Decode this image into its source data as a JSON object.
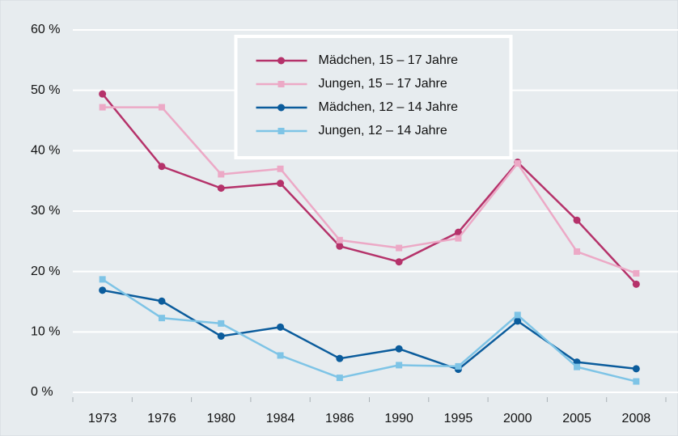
{
  "chart_data": {
    "type": "line",
    "categories": [
      "1973",
      "1976",
      "1980",
      "1984",
      "1986",
      "1990",
      "1995",
      "2000",
      "2005",
      "2008"
    ],
    "series": [
      {
        "name": "Mädchen, 15 – 17 Jahre",
        "color": "#b5326a",
        "marker": "circle",
        "values": [
          49.4,
          37.4,
          33.8,
          34.6,
          24.2,
          21.6,
          26.5,
          38.1,
          28.5,
          17.9
        ]
      },
      {
        "name": "Jungen, 15 – 17 Jahre",
        "color": "#eca9c6",
        "marker": "square",
        "values": [
          47.2,
          47.2,
          36.1,
          37.0,
          25.2,
          23.9,
          25.5,
          37.9,
          23.3,
          19.7
        ]
      },
      {
        "name": "Mädchen, 12 – 14 Jahre",
        "color": "#0b5c9c",
        "marker": "circle",
        "values": [
          16.9,
          15.1,
          9.3,
          10.8,
          5.6,
          7.2,
          3.8,
          11.8,
          5.0,
          3.9
        ]
      },
      {
        "name": "Jungen, 12 – 14 Jahre",
        "color": "#7ec4e6",
        "marker": "square",
        "values": [
          18.7,
          12.3,
          11.4,
          6.1,
          2.4,
          4.5,
          4.3,
          12.8,
          4.2,
          1.8
        ]
      }
    ],
    "ylim": [
      0,
      60
    ],
    "yticks": [
      {
        "value": 0,
        "label": "0 %"
      },
      {
        "value": 10,
        "label": "10 %"
      },
      {
        "value": 20,
        "label": "20 %"
      },
      {
        "value": 30,
        "label": "30 %"
      },
      {
        "value": 40,
        "label": "40 %"
      },
      {
        "value": 50,
        "label": "50 %"
      },
      {
        "value": 60,
        "label": "60 %"
      }
    ],
    "grid": true,
    "legend": "upper center"
  }
}
